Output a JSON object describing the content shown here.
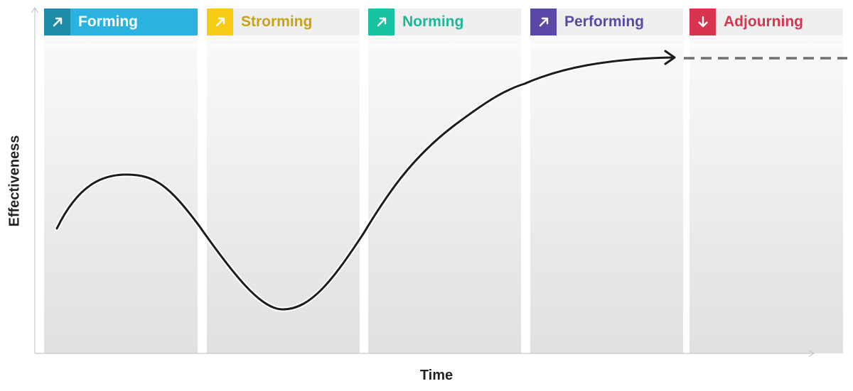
{
  "stages": [
    {
      "label": "Forming",
      "icon": "arrow-up-right-icon",
      "icon_bg": "#1d8ca8",
      "header_bg": "#29b3de",
      "text_color": "#ffffff"
    },
    {
      "label": "Strorming",
      "icon": "arrow-up-right-icon",
      "icon_bg": "#f7cc17",
      "header_bg": "#efefef",
      "text_color": "#c9a212"
    },
    {
      "label": "Norming",
      "icon": "arrow-up-right-icon",
      "icon_bg": "#18c3a1",
      "header_bg": "#efefef",
      "text_color": "#1bb99a"
    },
    {
      "label": "Performing",
      "icon": "arrow-up-right-icon",
      "icon_bg": "#5b48a6",
      "header_bg": "#efefef",
      "text_color": "#5b48a6"
    },
    {
      "label": "Adjourning",
      "icon": "arrow-down-icon",
      "icon_bg": "#d8334f",
      "header_bg": "#efefef",
      "text_color": "#d8334f"
    }
  ],
  "axes": {
    "x_label": "Time",
    "y_label": "Effectiveness"
  },
  "curve_color": "#1c1c1c",
  "projection_color": "#707070"
}
